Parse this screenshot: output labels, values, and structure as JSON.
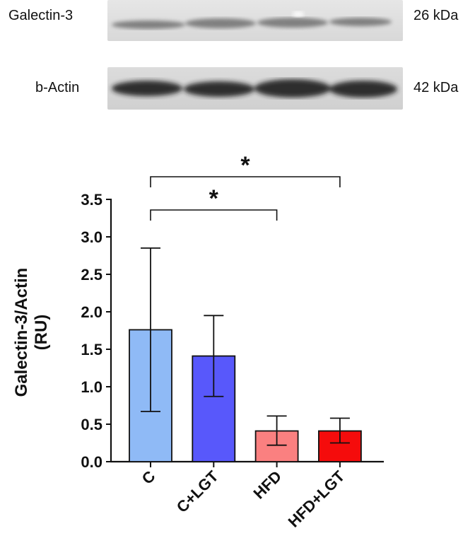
{
  "blots": [
    {
      "protein": "Galectin-3",
      "size": "26 kDa"
    },
    {
      "protein": "b-Actin",
      "size": "42 kDa"
    }
  ],
  "chart_data": {
    "type": "bar",
    "categories": [
      "C",
      "C+LGT",
      "HFD",
      "HFD+LGT"
    ],
    "values": [
      1.76,
      1.41,
      0.41,
      0.41
    ],
    "error_low": [
      0.67,
      0.87,
      0.22,
      0.25
    ],
    "error_high": [
      2.85,
      1.95,
      0.61,
      0.58
    ],
    "bar_colors": [
      "#8fbaf6",
      "#5858fb",
      "#fa8080",
      "#f50c0c"
    ],
    "ylabel": "Galectin-3/Actin (RU)",
    "ylabel_lines": [
      "Galectin-3/Actin",
      "(RU)"
    ],
    "yticks": [
      "0.0",
      "0.5",
      "1.0",
      "1.5",
      "2.0",
      "2.5",
      "3.0",
      "3.5"
    ],
    "ylim": [
      0,
      3.5
    ],
    "significance": [
      {
        "from": "C",
        "to": "HFD+LGT",
        "label": "*"
      },
      {
        "from": "C",
        "to": "HFD",
        "label": "*"
      }
    ]
  }
}
